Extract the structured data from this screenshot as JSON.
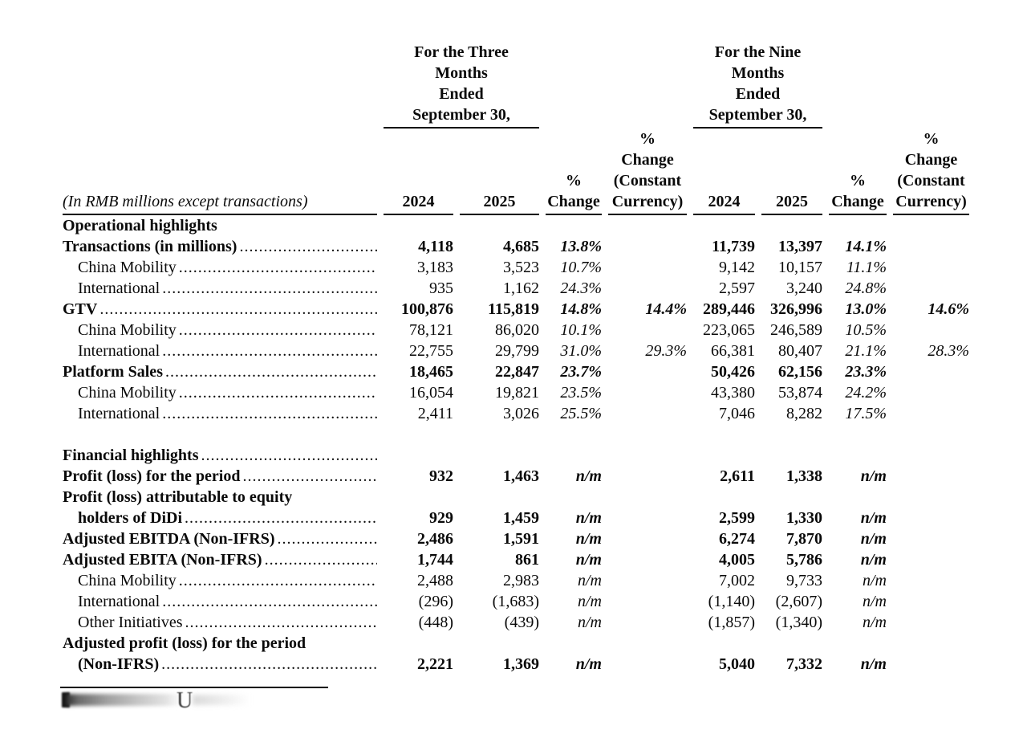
{
  "table": {
    "unit_note": "(In RMB millions except transactions)",
    "groups": [
      {
        "title": "For the Three\nMonths\nEnded\nSeptember 30,"
      },
      {
        "title": "For the Nine\nMonths\nEnded\nSeptember 30,"
      }
    ],
    "columns": [
      "2024",
      "2025",
      "%\nChange",
      "%\nChange\n(Constant\nCurrency)",
      "2024",
      "2025",
      "%\nChange",
      "%\nChange\n(Constant\nCurrency)"
    ],
    "rows": [
      {
        "label": "Operational highlights",
        "style": "bold",
        "indent": 0,
        "leaders": false,
        "values": [
          "",
          "",
          "",
          "",
          "",
          "",
          "",
          ""
        ]
      },
      {
        "label": "Transactions (in millions)",
        "style": "bold",
        "indent": 0,
        "leaders": true,
        "values": [
          "4,118",
          "4,685",
          "13.8%",
          "",
          "11,739",
          "13,397",
          "14.1%",
          ""
        ]
      },
      {
        "label": "China Mobility",
        "style": "normal",
        "indent": 1,
        "leaders": true,
        "values": [
          "3,183",
          "3,523",
          "10.7%",
          "",
          "9,142",
          "10,157",
          "11.1%",
          ""
        ]
      },
      {
        "label": "International",
        "style": "normal",
        "indent": 1,
        "leaders": true,
        "values": [
          "935",
          "1,162",
          "24.3%",
          "",
          "2,597",
          "3,240",
          "24.8%",
          ""
        ]
      },
      {
        "label": "GTV",
        "style": "bold",
        "indent": 0,
        "leaders": true,
        "values": [
          "100,876",
          "115,819",
          "14.8%",
          "14.4%",
          "289,446",
          "326,996",
          "13.0%",
          "14.6%"
        ]
      },
      {
        "label": "China Mobility",
        "style": "normal",
        "indent": 1,
        "leaders": true,
        "values": [
          "78,121",
          "86,020",
          "10.1%",
          "",
          "223,065",
          "246,589",
          "10.5%",
          ""
        ]
      },
      {
        "label": "International",
        "style": "normal",
        "indent": 1,
        "leaders": true,
        "values": [
          "22,755",
          "29,799",
          "31.0%",
          "29.3%",
          "66,381",
          "80,407",
          "21.1%",
          "28.3%"
        ]
      },
      {
        "label": "Platform Sales",
        "style": "bold",
        "indent": 0,
        "leaders": true,
        "values": [
          "18,465",
          "22,847",
          "23.7%",
          "",
          "50,426",
          "62,156",
          "23.3%",
          ""
        ]
      },
      {
        "label": "China Mobility",
        "style": "normal",
        "indent": 1,
        "leaders": true,
        "values": [
          "16,054",
          "19,821",
          "23.5%",
          "",
          "43,380",
          "53,874",
          "24.2%",
          ""
        ]
      },
      {
        "label": "International",
        "style": "normal",
        "indent": 1,
        "leaders": true,
        "values": [
          "2,411",
          "3,026",
          "25.5%",
          "",
          "7,046",
          "8,282",
          "17.5%",
          ""
        ]
      },
      {
        "spacer": true
      },
      {
        "label": "Financial highlights",
        "style": "bold",
        "indent": 0,
        "leaders": true,
        "values": [
          "",
          "",
          "",
          "",
          "",
          "",
          "",
          ""
        ]
      },
      {
        "label": "Profit (loss) for the period",
        "style": "bold",
        "indent": 0,
        "leaders": true,
        "values": [
          "932",
          "1,463",
          "n/m",
          "",
          "2,611",
          "1,338",
          "n/m",
          ""
        ]
      },
      {
        "label": "Profit (loss) attributable to equity",
        "style": "bold",
        "indent": 0,
        "leaders": false,
        "values": [
          "",
          "",
          "",
          "",
          "",
          "",
          "",
          ""
        ]
      },
      {
        "label": "holders of DiDi",
        "style": "bold",
        "indent": 1,
        "leaders": true,
        "values": [
          "929",
          "1,459",
          "n/m",
          "",
          "2,599",
          "1,330",
          "n/m",
          ""
        ]
      },
      {
        "label": "Adjusted EBITDA (Non-IFRS)",
        "style": "bold",
        "indent": 0,
        "leaders": true,
        "values": [
          "2,486",
          "1,591",
          "n/m",
          "",
          "6,274",
          "7,870",
          "n/m",
          ""
        ]
      },
      {
        "label": "Adjusted EBITA (Non-IFRS)",
        "style": "bold",
        "indent": 0,
        "leaders": true,
        "values": [
          "1,744",
          "861",
          "n/m",
          "",
          "4,005",
          "5,786",
          "n/m",
          ""
        ]
      },
      {
        "label": "China Mobility",
        "style": "normal",
        "indent": 1,
        "leaders": true,
        "values": [
          "2,488",
          "2,983",
          "n/m",
          "",
          "7,002",
          "9,733",
          "n/m",
          ""
        ]
      },
      {
        "label": "International",
        "style": "normal",
        "indent": 1,
        "leaders": true,
        "values": [
          "(296)",
          "(1,683)",
          "n/m",
          "",
          "(1,140)",
          "(2,607)",
          "n/m",
          ""
        ]
      },
      {
        "label": "Other Initiatives",
        "style": "normal",
        "indent": 1,
        "leaders": true,
        "values": [
          "(448)",
          "(439)",
          "n/m",
          "",
          "(1,857)",
          "(1,340)",
          "n/m",
          ""
        ]
      },
      {
        "label": "Adjusted profit (loss) for the period",
        "style": "bold",
        "indent": 0,
        "leaders": false,
        "values": [
          "",
          "",
          "",
          "",
          "",
          "",
          "",
          ""
        ]
      },
      {
        "label": "(Non-IFRS)",
        "style": "bold",
        "indent": 1,
        "leaders": true,
        "values": [
          "2,221",
          "1,369",
          "n/m",
          "",
          "5,040",
          "7,332",
          "n/m",
          ""
        ]
      }
    ]
  },
  "footer": {
    "blurred_glyph": "U"
  }
}
